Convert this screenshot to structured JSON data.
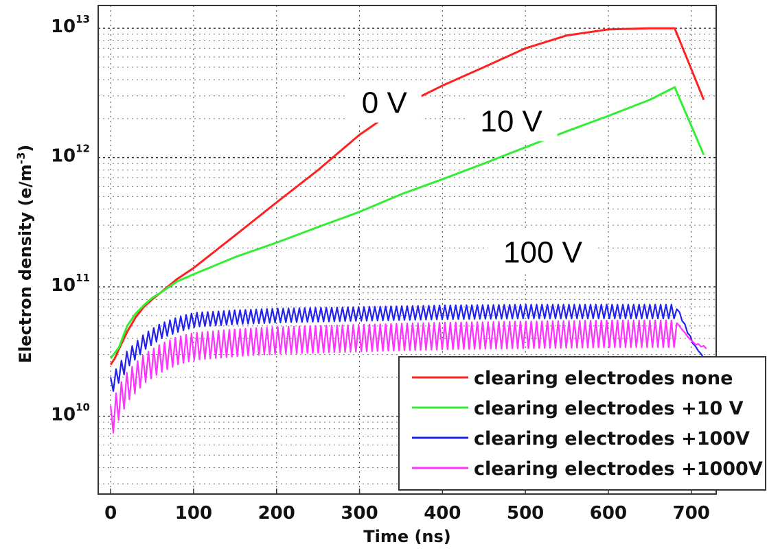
{
  "chart_data": {
    "type": "line",
    "xlabel": "Time (ns)",
    "ylabel": "Electron density (e/m",
    "ylabel_sup": "-3",
    "ylabel_close": ")",
    "xlim": [
      -15,
      730
    ],
    "ylim": [
      2500000000.0,
      15000000000000.0
    ],
    "yscale": "log",
    "grid": true,
    "legend_position": "bottom-right",
    "x_ticks": [
      0,
      100,
      200,
      300,
      400,
      500,
      600,
      700
    ],
    "x_tick_labels": [
      "0",
      "100",
      "200",
      "300",
      "400",
      "500",
      "600",
      "700"
    ],
    "y_ticks": [
      10000000000.0,
      100000000000.0,
      1000000000000.0,
      10000000000000.0
    ],
    "y_tick_labels": [
      {
        "base": "10",
        "exp": "10"
      },
      {
        "base": "10",
        "exp": "11"
      },
      {
        "base": "10",
        "exp": "12"
      },
      {
        "base": "10",
        "exp": "13"
      }
    ],
    "annotations": [
      {
        "text": "0 V",
        "x": 330,
        "y": 2500000000000.0
      },
      {
        "text": "10 V",
        "x": 483,
        "y": 1800000000000.0
      },
      {
        "text": "100 V",
        "x": 521,
        "y": 175000000000.0
      }
    ],
    "series": [
      {
        "name": "clearing electrodes none",
        "color": "#ff2020",
        "x": [
          0,
          5,
          10,
          20,
          30,
          40,
          50,
          60,
          80,
          100,
          150,
          200,
          250,
          300,
          350,
          400,
          450,
          500,
          550,
          600,
          650,
          680,
          715
        ],
        "y": [
          25000000000.0,
          28000000000.0,
          33000000000.0,
          45000000000.0,
          58000000000.0,
          70000000000.0,
          80000000000.0,
          90000000000.0,
          115000000000.0,
          140000000000.0,
          250000000000.0,
          450000000000.0,
          800000000000.0,
          1500000000000.0,
          2500000000000.0,
          3600000000000.0,
          5000000000000.0,
          7000000000000.0,
          8800000000000.0,
          9800000000000.0,
          10000000000000.0,
          10000000000000.0,
          2800000000000.0
        ]
      },
      {
        "name": "clearing electrodes +10 V",
        "color": "#33ee33",
        "x": [
          0,
          10,
          20,
          30,
          40,
          50,
          60,
          80,
          100,
          150,
          200,
          250,
          300,
          350,
          400,
          450,
          500,
          550,
          600,
          650,
          680,
          715
        ],
        "y": [
          28000000000.0,
          34000000000.0,
          50000000000.0,
          62000000000.0,
          72000000000.0,
          82000000000.0,
          90000000000.0,
          110000000000.0,
          125000000000.0,
          170000000000.0,
          220000000000.0,
          290000000000.0,
          380000000000.0,
          520000000000.0,
          680000000000.0,
          900000000000.0,
          1200000000000.0,
          1600000000000.0,
          2100000000000.0,
          2800000000000.0,
          3500000000000.0,
          1050000000000.0
        ]
      },
      {
        "name": "clearing electrodes +100V",
        "color": "#2222ee",
        "x": [
          0,
          10,
          20,
          40,
          60,
          80,
          100,
          150,
          200,
          300,
          400,
          500,
          600,
          680,
          700,
          715
        ],
        "y": [
          20000000000.0,
          25000000000.0,
          32000000000.0,
          43000000000.0,
          52000000000.0,
          58000000000.0,
          63000000000.0,
          66000000000.0,
          68000000000.0,
          70000000000.0,
          72000000000.0,
          73000000000.0,
          73000000000.0,
          73000000000.0,
          38000000000.0,
          28000000000.0
        ]
      },
      {
        "name": "clearing electrodes +1000V",
        "color": "#ff33ff",
        "x": [
          0,
          10,
          20,
          40,
          60,
          80,
          100,
          150,
          200,
          300,
          400,
          500,
          600,
          680,
          700,
          715
        ],
        "y": [
          12000000000.0,
          17000000000.0,
          22000000000.0,
          30000000000.0,
          36000000000.0,
          41000000000.0,
          44000000000.0,
          47000000000.0,
          49000000000.0,
          51000000000.0,
          53000000000.0,
          54000000000.0,
          55000000000.0,
          55000000000.0,
          38000000000.0,
          35000000000.0
        ]
      }
    ]
  }
}
